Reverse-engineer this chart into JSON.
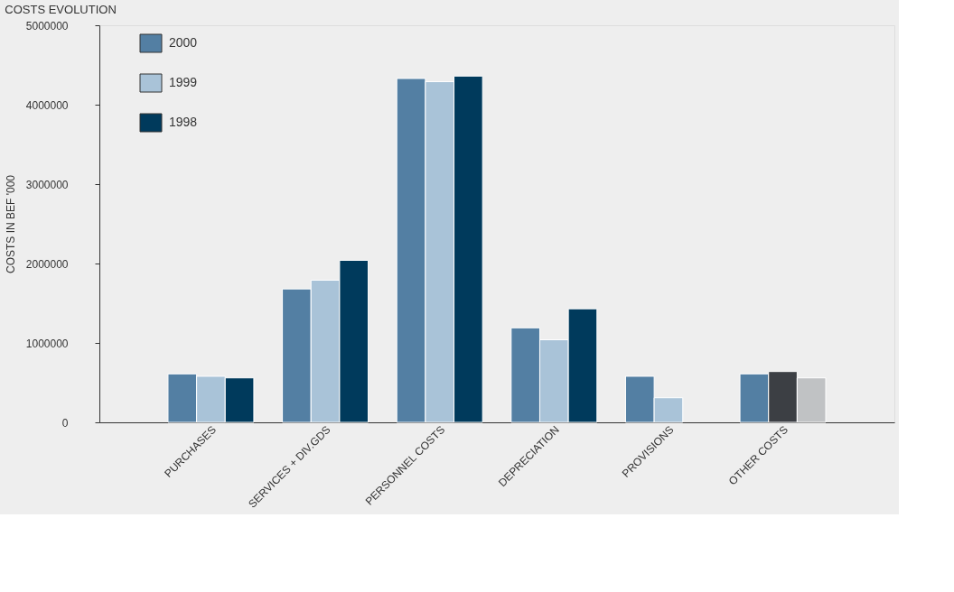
{
  "chart_data": {
    "type": "bar",
    "title": "COSTS EVOLUTION",
    "ylabel": "COSTS IN BEF '000",
    "categories": [
      "PURCHASES",
      "SERVICES + DIV.GDS",
      "PERSONNEL COSTS",
      "DEPRECIATION",
      "PROVISIONS",
      "OTHER COSTS"
    ],
    "series": [
      {
        "name": "2000",
        "color": "#537fa3",
        "values": [
          610000,
          1680000,
          4330000,
          1190000,
          580000,
          610000
        ]
      },
      {
        "name": "1999",
        "color": "#a9c3d8",
        "colors": [
          "#a9c3d8",
          "#a9c3d8",
          "#a9c3d8",
          "#a9c3d8",
          "#a9c3d8",
          "#3c3f44"
        ],
        "values": [
          580000,
          1790000,
          4290000,
          1040000,
          310000,
          640000
        ]
      },
      {
        "name": "1998",
        "color": "#003a5c",
        "colors": [
          "#003a5c",
          "#003a5c",
          "#003a5c",
          "#003a5c",
          null,
          "#c0c2c4"
        ],
        "values": [
          560000,
          2040000,
          4360000,
          1430000,
          null,
          560000
        ]
      }
    ],
    "ylim": [
      0,
      5000000
    ],
    "yticks": [
      0,
      1000000,
      2000000,
      3000000,
      4000000,
      5000000
    ],
    "grid": false,
    "legend": "top left"
  }
}
